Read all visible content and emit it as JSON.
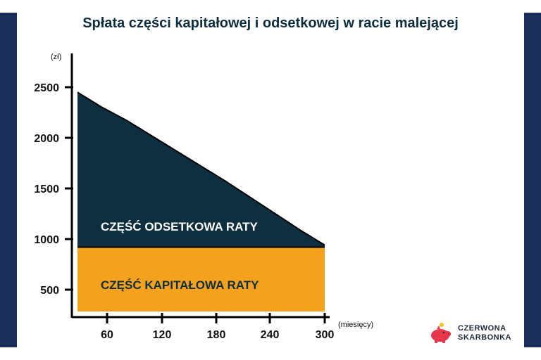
{
  "chart_data": {
    "type": "area",
    "title": "Spłata części kapitałowej i odsetkowej w racie malejącej",
    "y_unit": "(zł)",
    "x_unit": "(miesięcy)",
    "x_ticks": [
      60,
      120,
      180,
      240,
      300
    ],
    "y_ticks": [
      500,
      1000,
      1500,
      2000,
      2500
    ],
    "xlim": [
      0,
      300
    ],
    "ylim": [
      0,
      2600
    ],
    "series": [
      {
        "name": "CZĘŚĆ KAPITAŁOWA RATY",
        "color": "#f4a11d",
        "x": [
          0,
          300
        ],
        "y": [
          920,
          920
        ]
      },
      {
        "name": "CZĘŚĆ ODSETKOWA RATY",
        "color": "#0e2f40",
        "x": [
          0,
          30,
          60,
          90,
          120,
          150,
          180,
          210,
          240,
          270,
          300
        ],
        "y": [
          2450,
          2300,
          2170,
          2020,
          1870,
          1720,
          1570,
          1410,
          1250,
          1090,
          940
        ]
      }
    ],
    "grid": false
  },
  "brand": {
    "line1": "CZERWONA",
    "line2": "SKARBONKA"
  }
}
